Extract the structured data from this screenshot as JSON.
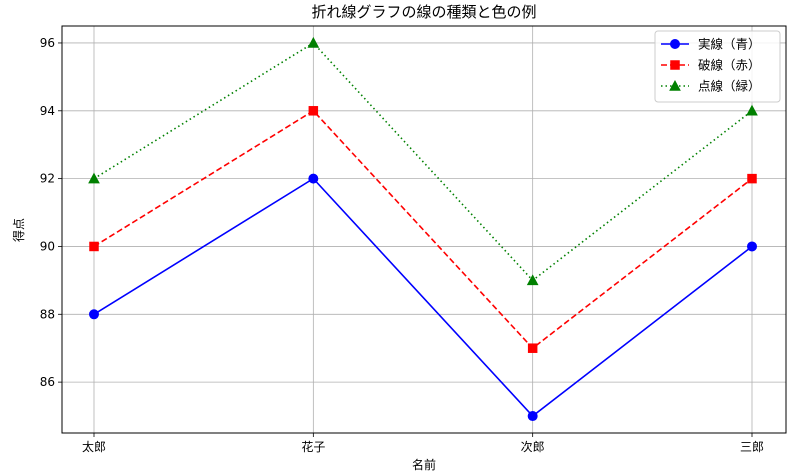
{
  "chart_data": {
    "type": "line",
    "title": "折れ線グラフの線の種類と色の例",
    "xlabel": "名前",
    "ylabel": "得点",
    "categories": [
      "太郎",
      "花子",
      "次郎",
      "三郎"
    ],
    "ylim": [
      84.5,
      96.5
    ],
    "yticks": [
      86,
      88,
      90,
      92,
      94,
      96
    ],
    "grid": true,
    "legend_position": "top-right",
    "series": [
      {
        "name": "実線（青）",
        "values": [
          88,
          92,
          85,
          90
        ],
        "color": "#0000ff",
        "line_style": "solid",
        "marker": "circle"
      },
      {
        "name": "破線（赤）",
        "values": [
          90,
          94,
          87,
          92
        ],
        "color": "#ff0000",
        "line_style": "dashed",
        "marker": "square"
      },
      {
        "name": "点線（緑）",
        "values": [
          92,
          96,
          89,
          94
        ],
        "color": "#008000",
        "line_style": "dotted",
        "marker": "triangle"
      }
    ]
  }
}
